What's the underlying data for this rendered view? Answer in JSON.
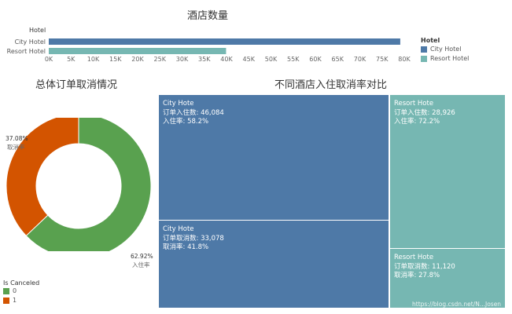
{
  "bar_chart": {
    "title": "酒店数量",
    "axis_header": "Hotel",
    "legend_title": "Hotel"
  },
  "donut_chart": {
    "title": "总体订单取消情况",
    "legend_title": "Is Canceled",
    "labels": {
      "canceled_pct": "37.08%",
      "canceled_name": "取消率",
      "checkin_pct": "62.92%",
      "checkin_name": "入住率"
    }
  },
  "treemap": {
    "title": "不同酒店入住取消率对比",
    "tiles": [
      {
        "hotel": "City Hote",
        "line1": "订单入住数: 46,084",
        "line2": "入住率: 58.2%",
        "color": "#4e79a7"
      },
      {
        "hotel": "City Hote",
        "line1": "订单取消数: 33,078",
        "line2": "取消率: 41.8%",
        "color": "#4e79a7"
      },
      {
        "hotel": "Resort Hote",
        "line1": "订单入住数: 28,926",
        "line2": "入住率: 72.2%",
        "color": "#76b7b2"
      },
      {
        "hotel": "Resort Hote",
        "line1": "订单取消数: 11,120",
        "line2": "取消率: 27.8%",
        "color": "#76b7b2"
      }
    ]
  },
  "watermark": "https://blog.csdn.net/N...Josen",
  "chart_data": [
    {
      "type": "bar",
      "title": "酒店数量",
      "categories": [
        "City Hotel",
        "Resort Hotel"
      ],
      "values": [
        79100,
        39900
      ],
      "colors": [
        "#4e79a7",
        "#76b7b2"
      ],
      "xlabel": "",
      "ylabel": "Hotel",
      "xlim": [
        0,
        80000
      ],
      "xticks": [
        "0K",
        "5K",
        "10K",
        "15K",
        "20K",
        "25K",
        "30K",
        "35K",
        "40K",
        "45K",
        "50K",
        "55K",
        "60K",
        "65K",
        "70K",
        "75K",
        "80K"
      ],
      "legend": {
        "title": "Hotel",
        "entries": [
          "City Hotel",
          "Resort Hotel"
        ],
        "placement": "right"
      }
    },
    {
      "type": "pie",
      "title": "总体订单取消情况",
      "categories": [
        "0",
        "1"
      ],
      "values": [
        62.92,
        37.08
      ],
      "colors": [
        "#59a14f",
        "#d35400"
      ],
      "slice_labels": [
        "入住率",
        "取消率"
      ],
      "legend": {
        "title": "Is Canceled",
        "entries": [
          "0",
          "1"
        ],
        "placement": "bottom-left"
      }
    },
    {
      "type": "treemap",
      "title": "不同酒店入住取消率对比",
      "categories": [
        "City Hotel 入住",
        "City Hotel 取消",
        "Resort Hotel 入住",
        "Resort Hotel 取消"
      ],
      "values": [
        46084,
        33078,
        28926,
        11120
      ]
    }
  ]
}
